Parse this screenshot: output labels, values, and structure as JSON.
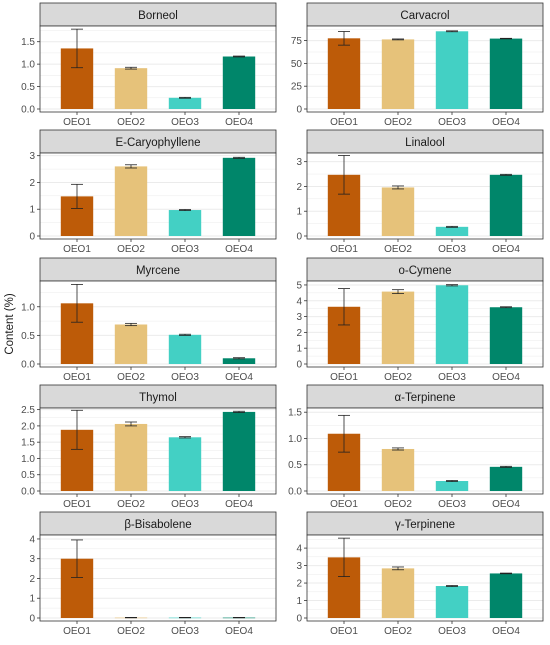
{
  "figure": {
    "ylabel": "Content (%)",
    "colors": {
      "OEO1": "#bd5b08",
      "OEO2": "#e6c27a",
      "OEO3": "#43d0c4",
      "OEO4": "#00866a",
      "strip_fill": "#d9d9d9",
      "grid": "#ebebeb",
      "panel_border": "#333333"
    }
  },
  "chart_data": [
    {
      "type": "bar",
      "title": "Borneol",
      "categories": [
        "OEO1",
        "OEO2",
        "OEO3",
        "OEO4"
      ],
      "values": [
        1.35,
        0.91,
        0.25,
        1.17
      ],
      "errors": [
        0.43,
        0.02,
        0.01,
        0.01
      ],
      "ylim": [
        0,
        1.85
      ],
      "yticks": [
        0,
        0.5,
        1,
        1.5
      ],
      "ytick_labels": [
        "0.0",
        "0.5",
        "1.0",
        "1.5"
      ],
      "grid": true
    },
    {
      "type": "bar",
      "title": "Carvacrol",
      "categories": [
        "OEO1",
        "OEO2",
        "OEO3",
        "OEO4"
      ],
      "values": [
        77.5,
        76.3,
        85.2,
        77.2
      ],
      "errors": [
        7.5,
        0.5,
        0.5,
        0.3
      ],
      "ylim": [
        0,
        91
      ],
      "yticks": [
        0,
        25,
        50,
        75
      ],
      "ytick_labels": [
        "0",
        "25",
        "50",
        "75"
      ],
      "grid": true
    },
    {
      "type": "bar",
      "title": "E-Caryophyllene",
      "categories": [
        "OEO1",
        "OEO2",
        "OEO3",
        "OEO4"
      ],
      "values": [
        1.48,
        2.6,
        0.97,
        2.92
      ],
      "errors": [
        0.45,
        0.06,
        0.02,
        0.02
      ],
      "ylim": [
        0,
        3.1
      ],
      "yticks": [
        0,
        1,
        2,
        3
      ],
      "ytick_labels": [
        "0",
        "1",
        "2",
        "3"
      ],
      "grid": true
    },
    {
      "type": "bar",
      "title": "Linalool",
      "categories": [
        "OEO1",
        "OEO2",
        "OEO3",
        "OEO4"
      ],
      "values": [
        2.47,
        1.96,
        0.37,
        2.47
      ],
      "errors": [
        0.78,
        0.06,
        0.02,
        0.02
      ],
      "ylim": [
        0,
        3.35
      ],
      "yticks": [
        0,
        1,
        2,
        3
      ],
      "ytick_labels": [
        "0",
        "1",
        "2",
        "3"
      ],
      "grid": true
    },
    {
      "type": "bar",
      "title": "Myrcene",
      "categories": [
        "OEO1",
        "OEO2",
        "OEO3",
        "OEO4"
      ],
      "values": [
        1.06,
        0.69,
        0.51,
        0.1
      ],
      "errors": [
        0.33,
        0.02,
        0.01,
        0.01
      ],
      "ylim": [
        0,
        1.45
      ],
      "yticks": [
        0,
        0.5,
        1
      ],
      "ytick_labels": [
        "0.0",
        "0.5",
        "1.0"
      ],
      "grid": true
    },
    {
      "type": "bar",
      "title": "o-Cymene",
      "categories": [
        "OEO1",
        "OEO2",
        "OEO3",
        "OEO4"
      ],
      "values": [
        3.62,
        4.58,
        4.98,
        3.59
      ],
      "errors": [
        1.15,
        0.12,
        0.04,
        0.03
      ],
      "ylim": [
        0,
        5.25
      ],
      "yticks": [
        0,
        1,
        2,
        3,
        4,
        5
      ],
      "ytick_labels": [
        "0",
        "1",
        "2",
        "3",
        "4",
        "5"
      ],
      "grid": true
    },
    {
      "type": "bar",
      "title": "Thymol",
      "categories": [
        "OEO1",
        "OEO2",
        "OEO3",
        "OEO4"
      ],
      "values": [
        1.88,
        2.06,
        1.65,
        2.43
      ],
      "errors": [
        0.6,
        0.06,
        0.02,
        0.02
      ],
      "ylim": [
        0,
        2.55
      ],
      "yticks": [
        0,
        0.5,
        1,
        1.5,
        2,
        2.5
      ],
      "ytick_labels": [
        "0.0",
        "0.5",
        "1.0",
        "1.5",
        "2.0",
        "2.5"
      ],
      "grid": true
    },
    {
      "type": "bar",
      "title": "α-Terpinene",
      "categories": [
        "OEO1",
        "OEO2",
        "OEO3",
        "OEO4"
      ],
      "values": [
        1.09,
        0.8,
        0.19,
        0.46
      ],
      "errors": [
        0.35,
        0.02,
        0.01,
        0.01
      ],
      "ylim": [
        0,
        1.58
      ],
      "yticks": [
        0,
        0.5,
        1,
        1.5
      ],
      "ytick_labels": [
        "0.0",
        "0.5",
        "1.0",
        "1.5"
      ],
      "grid": true
    },
    {
      "type": "bar",
      "title": "β-Bisabolene",
      "categories": [
        "OEO1",
        "OEO2",
        "OEO3",
        "OEO4"
      ],
      "values": [
        3.0,
        0.02,
        0.02,
        0.02
      ],
      "errors": [
        0.95,
        0.01,
        0.01,
        0.01
      ],
      "ylim": [
        0,
        4.2
      ],
      "yticks": [
        0,
        1,
        2,
        3,
        4
      ],
      "ytick_labels": [
        "0",
        "1",
        "2",
        "3",
        "4"
      ],
      "grid": true
    },
    {
      "type": "bar",
      "title": "γ-Terpinene",
      "categories": [
        "OEO1",
        "OEO2",
        "OEO3",
        "OEO4"
      ],
      "values": [
        3.47,
        2.84,
        1.83,
        2.55
      ],
      "errors": [
        1.1,
        0.08,
        0.03,
        0.02
      ],
      "ylim": [
        0,
        4.75
      ],
      "yticks": [
        0,
        1,
        2,
        3,
        4
      ],
      "ytick_labels": [
        "0",
        "1",
        "2",
        "3",
        "4"
      ],
      "grid": true
    }
  ]
}
